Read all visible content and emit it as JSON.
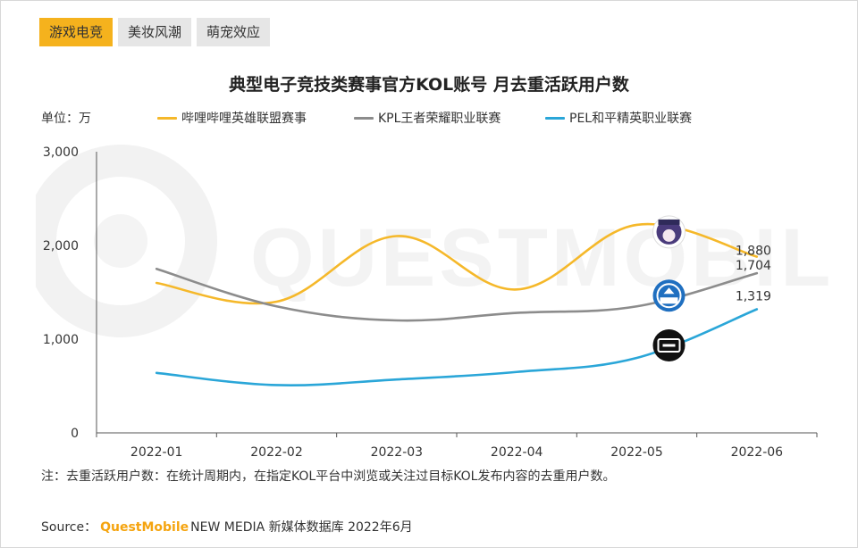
{
  "tabs": [
    {
      "label": "游戏电竞",
      "active": true
    },
    {
      "label": "美妆风潮",
      "active": false
    },
    {
      "label": "萌宠效应",
      "active": false
    }
  ],
  "unit_label": "单位：万",
  "note": "注：去重活跃用户数：在统计周期内，在指定KOL平台中浏览或关注过目标KOL发布内容的去重用户数。",
  "source": {
    "prefix": "Source：",
    "brand": "QuestMobile",
    "suffix": "NEW MEDIA 新媒体数据库 2022年6月"
  },
  "watermark_text": "QUESTMOBILE",
  "colors": {
    "accent": "#f5b21d",
    "series_1": "#f5b82a",
    "series_2": "#8c8c8c",
    "series_3": "#2aa6d8"
  },
  "icons": [
    "lol-avatar-icon",
    "kpl-logo-icon",
    "pel-logo-icon"
  ],
  "chart_data": {
    "type": "line",
    "title": "典型电子竞技类赛事官方KOL账号 月去重活跃用户数",
    "xlabel": "",
    "ylabel": "单位：万",
    "x": [
      "2022-01",
      "2022-02",
      "2022-03",
      "2022-04",
      "2022-05",
      "2022-06"
    ],
    "ylim": [
      0,
      3000
    ],
    "yticks": [
      "0",
      "1,000",
      "2,000",
      "3,000"
    ],
    "legend_position": "top",
    "grid": false,
    "series": [
      {
        "name": "哔哩哔哩英雄联盟赛事",
        "values": [
          1600,
          1400,
          2100,
          1530,
          2220,
          1880
        ],
        "end_label": "1,880",
        "color": "#f5b82a"
      },
      {
        "name": "KPL王者荣耀职业联赛",
        "values": [
          1750,
          1350,
          1200,
          1280,
          1350,
          1704
        ],
        "end_label": "1,704",
        "color": "#8c8c8c"
      },
      {
        "name": "PEL和平精英职业联赛",
        "values": [
          640,
          510,
          570,
          650,
          800,
          1319
        ],
        "end_label": "1,319",
        "color": "#2aa6d8"
      }
    ]
  }
}
